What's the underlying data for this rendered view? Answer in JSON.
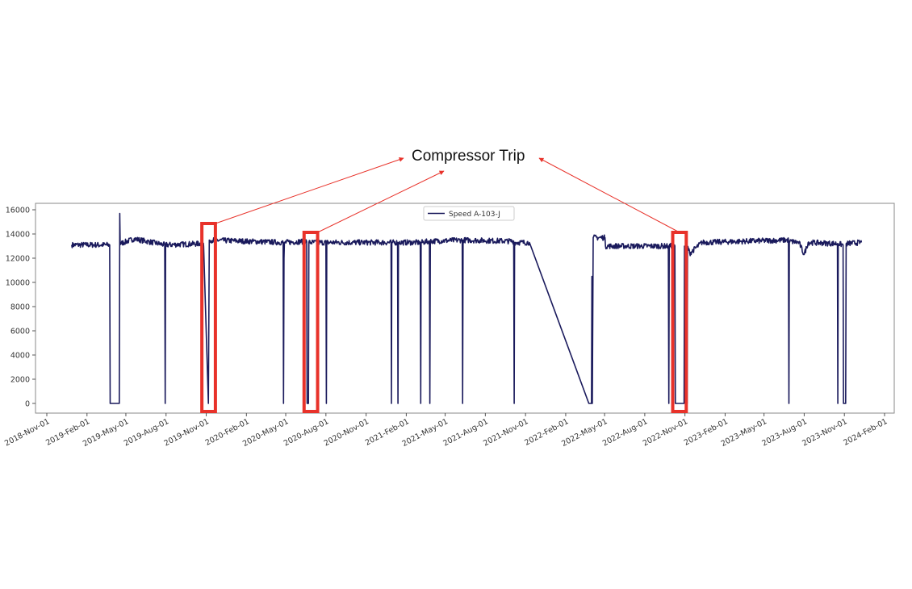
{
  "chart_data": {
    "type": "line",
    "title": "",
    "xlabel": "",
    "ylabel": "",
    "ylim": [
      -800,
      16500
    ],
    "xlim": [
      "2018-10-10",
      "2024-02-20"
    ],
    "grid": false,
    "legend_position": "top-center",
    "yticks": [
      0,
      2000,
      4000,
      6000,
      8000,
      10000,
      12000,
      14000,
      16000
    ],
    "ytick_labels": [
      "0",
      "2000",
      "4000",
      "6000",
      "8000",
      "10000",
      "12000",
      "14000",
      "16000"
    ],
    "xticks": [
      "2018-11-01",
      "2019-02-01",
      "2019-05-01",
      "2019-08-01",
      "2019-11-01",
      "2020-02-01",
      "2020-05-01",
      "2020-08-01",
      "2020-11-01",
      "2021-02-01",
      "2021-05-01",
      "2021-08-01",
      "2021-11-01",
      "2022-02-01",
      "2022-05-01",
      "2022-08-01",
      "2022-11-01",
      "2023-02-01",
      "2023-05-01",
      "2023-08-01",
      "2023-11-01",
      "2024-02-01"
    ],
    "xtick_labels": [
      "2018-Nov-01",
      "2019-Feb-01",
      "2019-May-01",
      "2019-Aug-01",
      "2019-Nov-01",
      "2020-Feb-01",
      "2020-May-01",
      "2020-Aug-01",
      "2020-Nov-01",
      "2021-Feb-01",
      "2021-May-01",
      "2021-Aug-01",
      "2021-Nov-01",
      "2022-Feb-01",
      "2022-May-01",
      "2022-Aug-01",
      "2022-Nov-01",
      "2023-Feb-01",
      "2023-May-01",
      "2023-Aug-01",
      "2023-Nov-01",
      "2024-Feb-01"
    ],
    "series": [
      {
        "name": "Speed A-103-J",
        "color": "#1a1a5c",
        "points": [
          [
            "2018-12-28",
            13100
          ],
          [
            "2019-03-25",
            13100
          ],
          [
            "2019-03-26",
            0
          ],
          [
            "2019-04-16",
            0
          ],
          [
            "2019-04-17",
            15700
          ],
          [
            "2019-04-18",
            13200
          ],
          [
            "2019-05-20",
            13600
          ],
          [
            "2019-07-29",
            13100
          ],
          [
            "2019-07-30",
            0
          ],
          [
            "2019-07-31",
            13100
          ],
          [
            "2019-10-20",
            13200
          ],
          [
            "2019-10-26",
            13000
          ],
          [
            "2019-11-06",
            0
          ],
          [
            "2019-11-08",
            13500
          ],
          [
            "2020-04-25",
            13300
          ],
          [
            "2020-04-26",
            0
          ],
          [
            "2020-04-27",
            12000
          ],
          [
            "2020-04-28",
            13300
          ],
          [
            "2020-06-18",
            13400
          ],
          [
            "2020-06-19",
            0
          ],
          [
            "2020-06-22",
            0
          ],
          [
            "2020-06-23",
            13300
          ],
          [
            "2020-08-01",
            13300
          ],
          [
            "2020-08-02",
            0
          ],
          [
            "2020-08-03",
            13300
          ],
          [
            "2020-12-28",
            13300
          ],
          [
            "2020-12-29",
            0
          ],
          [
            "2020-12-30",
            13300
          ],
          [
            "2021-01-12",
            13300
          ],
          [
            "2021-01-13",
            0
          ],
          [
            "2021-01-14",
            13300
          ],
          [
            "2021-03-05",
            13300
          ],
          [
            "2021-03-06",
            0
          ],
          [
            "2021-03-07",
            13300
          ],
          [
            "2021-03-26",
            13400
          ],
          [
            "2021-03-27",
            0
          ],
          [
            "2021-03-28",
            13400
          ],
          [
            "2021-06-09",
            13500
          ],
          [
            "2021-06-10",
            0
          ],
          [
            "2021-06-11",
            13500
          ],
          [
            "2021-10-05",
            13400
          ],
          [
            "2021-10-06",
            0
          ],
          [
            "2021-10-07",
            13300
          ],
          [
            "2021-11-10",
            13300
          ],
          [
            "2022-03-26",
            0
          ],
          [
            "2022-04-01",
            0
          ],
          [
            "2022-04-02",
            10500
          ],
          [
            "2022-04-03",
            0
          ],
          [
            "2022-04-05",
            13700
          ],
          [
            "2022-05-02",
            13700
          ],
          [
            "2022-05-03",
            13000
          ],
          [
            "2022-09-24",
            13000
          ],
          [
            "2022-09-25",
            0
          ],
          [
            "2022-09-26",
            13000
          ],
          [
            "2022-10-09",
            13000
          ],
          [
            "2022-10-10",
            0
          ],
          [
            "2022-10-30",
            0
          ],
          [
            "2022-10-31",
            13000
          ],
          [
            "2022-11-02",
            0
          ],
          [
            "2022-11-06",
            0
          ],
          [
            "2022-11-07",
            13000
          ],
          [
            "2022-11-12",
            12400
          ],
          [
            "2022-12-10",
            13300
          ],
          [
            "2023-06-26",
            13500
          ],
          [
            "2023-06-27",
            0
          ],
          [
            "2023-06-28",
            13400
          ],
          [
            "2023-07-20",
            13300
          ],
          [
            "2023-08-01",
            12300
          ],
          [
            "2023-08-10",
            13300
          ],
          [
            "2023-10-16",
            13200
          ],
          [
            "2023-10-17",
            0
          ],
          [
            "2023-10-18",
            13200
          ],
          [
            "2023-10-29",
            13100
          ],
          [
            "2023-10-30",
            0
          ],
          [
            "2023-11-04",
            0
          ],
          [
            "2023-11-05",
            13200
          ],
          [
            "2023-12-10",
            13300
          ]
        ]
      }
    ],
    "annotations": {
      "text": "Compressor Trip",
      "color": "#e8322a",
      "highlight_ranges": [
        [
          "2019-10-22",
          "2019-11-22"
        ],
        [
          "2020-06-12",
          "2020-07-13"
        ],
        [
          "2022-10-04",
          "2022-11-04"
        ]
      ]
    }
  }
}
